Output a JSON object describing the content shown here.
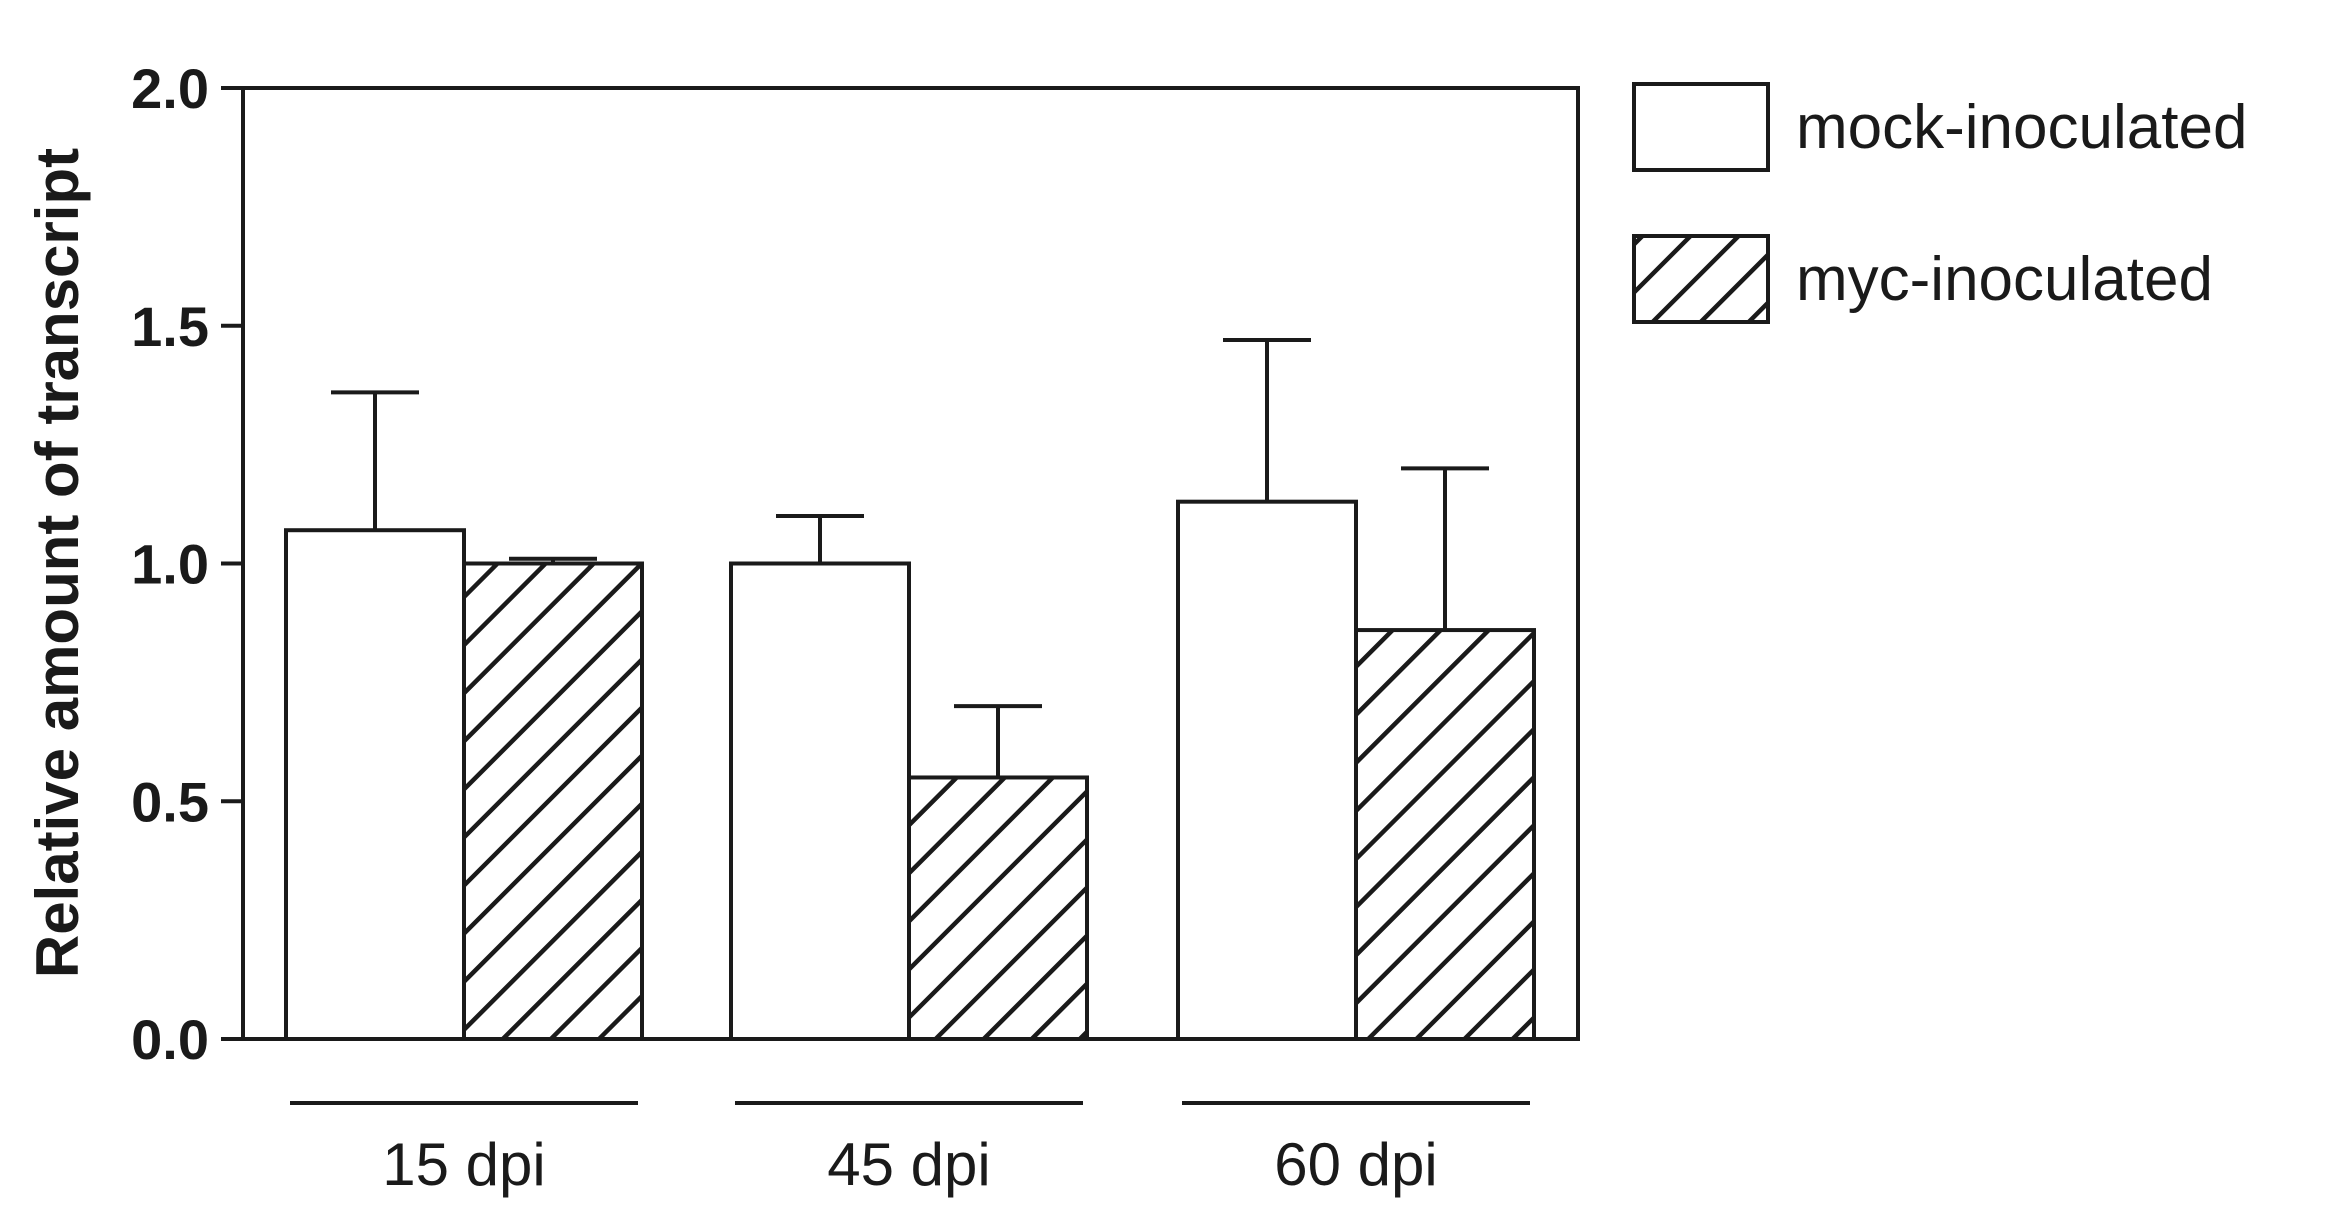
{
  "chart_data": {
    "type": "bar",
    "title": "",
    "xlabel": "",
    "ylabel": "Relative amount of transcript",
    "ylim": [
      0,
      2.0
    ],
    "yticks": [
      "0.0",
      "0.5",
      "1.0",
      "1.5",
      "2.0"
    ],
    "ytick_values": [
      0,
      0.5,
      1.0,
      1.5,
      2.0
    ],
    "categories": [
      "15 dpi",
      "45 dpi",
      "60 dpi"
    ],
    "series": [
      {
        "name": "mock-inoculated",
        "fill": "white",
        "values": [
          1.07,
          1.0,
          1.13
        ],
        "errors": [
          0.29,
          0.1,
          0.34
        ]
      },
      {
        "name": "myc-inoculated",
        "fill": "hatched",
        "values": [
          1.0,
          0.55,
          0.86
        ],
        "errors": [
          0.01,
          0.15,
          0.34
        ]
      }
    ],
    "legend_position": "right",
    "grid": false,
    "colors": {
      "stroke": "#1a1a1a",
      "background": "#ffffff",
      "bar_fill": "#ffffff"
    }
  }
}
